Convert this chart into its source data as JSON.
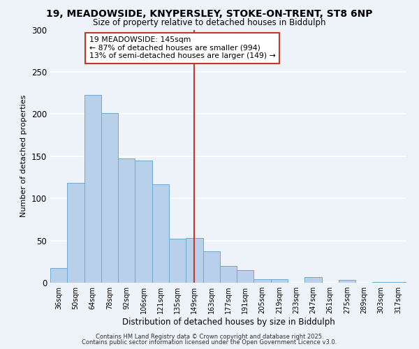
{
  "title1": "19, MEADOWSIDE, KNYPERSLEY, STOKE-ON-TRENT, ST8 6NP",
  "title2": "Size of property relative to detached houses in Biddulph",
  "xlabel": "Distribution of detached houses by size in Biddulph",
  "ylabel": "Number of detached properties",
  "categories": [
    "36sqm",
    "50sqm",
    "64sqm",
    "78sqm",
    "92sqm",
    "106sqm",
    "121sqm",
    "135sqm",
    "149sqm",
    "163sqm",
    "177sqm",
    "191sqm",
    "205sqm",
    "219sqm",
    "233sqm",
    "247sqm",
    "261sqm",
    "275sqm",
    "289sqm",
    "303sqm",
    "317sqm"
  ],
  "values": [
    17,
    118,
    223,
    201,
    147,
    145,
    117,
    52,
    53,
    37,
    20,
    15,
    4,
    4,
    0,
    7,
    0,
    3,
    0,
    1,
    1
  ],
  "bar_color": "#b8d0ea",
  "bar_edge_color": "#6aaad4",
  "vline_x": 8.5,
  "vline_color": "#c0392b",
  "annotation_title": "19 MEADOWSIDE: 145sqm",
  "annotation_line1": "← 87% of detached houses are smaller (994)",
  "annotation_line2": "13% of semi-detached houses are larger (149) →",
  "annotation_box_edgecolor": "#c0392b",
  "ylim": [
    0,
    300
  ],
  "yticks": [
    0,
    50,
    100,
    150,
    200,
    250,
    300
  ],
  "footnote1": "Contains HM Land Registry data © Crown copyright and database right 2025.",
  "footnote2": "Contains public sector information licensed under the Open Government Licence v3.0.",
  "background_color": "#eef2f9",
  "grid_color": "#ffffff"
}
